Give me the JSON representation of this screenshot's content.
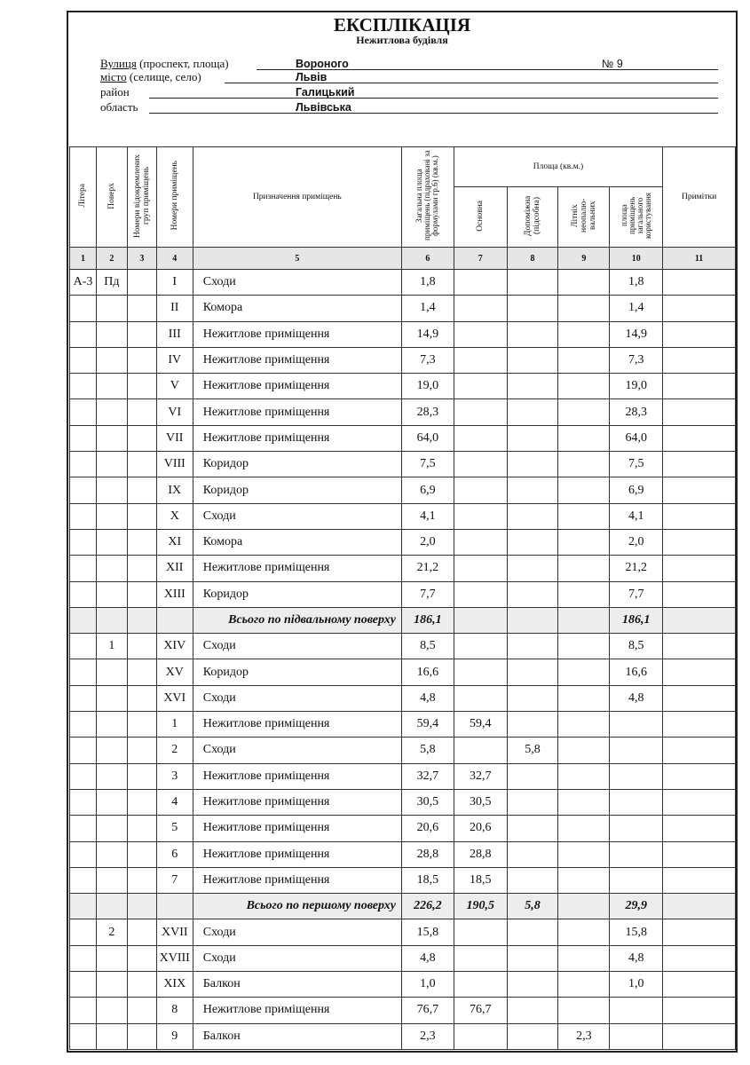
{
  "title": "ЕКСПЛІКАЦІЯ",
  "subtitle": "Нежитлова будівля",
  "address": {
    "street_label": "Вулиця",
    "street_label_rest": " (проспект, площа)",
    "street": "Вороного",
    "number": "№ 9",
    "city_label": "місто",
    "city_label_rest": " (селище, село)",
    "city": "Львів",
    "district_label": "район",
    "district": "Галицький",
    "region_label": "область",
    "region": "Львівська"
  },
  "headers": {
    "c1": "Літера",
    "c2": "Поверх",
    "c3": "Номери відокремлених груп приміщень",
    "c4": "Номери приміщень",
    "c5": "Призначення приміщень",
    "c6": "Загальна площа приміщень (підраховані за формулами гр.6) (кв.м.)",
    "area_group": "Площа (кв.м.)",
    "c7": "Основна",
    "c8": "Допоміжна (підсобна)",
    "c9": "Літніх неопалю- вальних",
    "c10": "площа приміщень загального користування",
    "c11": "Примітки"
  },
  "col_numbers": [
    "1",
    "2",
    "3",
    "4",
    "5",
    "6",
    "7",
    "8",
    "9",
    "10",
    "11"
  ],
  "rows": [
    [
      "А-3",
      "Пд",
      "",
      "I",
      "Сходи",
      "1,8",
      "",
      "",
      "",
      "1,8",
      ""
    ],
    [
      "",
      "",
      "",
      "II",
      "Комора",
      "1,4",
      "",
      "",
      "",
      "1,4",
      ""
    ],
    [
      "",
      "",
      "",
      "III",
      "Нежитлове приміщення",
      "14,9",
      "",
      "",
      "",
      "14,9",
      ""
    ],
    [
      "",
      "",
      "",
      "IV",
      "Нежитлове приміщення",
      "7,3",
      "",
      "",
      "",
      "7,3",
      ""
    ],
    [
      "",
      "",
      "",
      "V",
      "Нежитлове приміщення",
      "19,0",
      "",
      "",
      "",
      "19,0",
      ""
    ],
    [
      "",
      "",
      "",
      "VI",
      "Нежитлове приміщення",
      "28,3",
      "",
      "",
      "",
      "28,3",
      ""
    ],
    [
      "",
      "",
      "",
      "VII",
      "Нежитлове приміщення",
      "64,0",
      "",
      "",
      "",
      "64,0",
      ""
    ],
    [
      "",
      "",
      "",
      "VIII",
      "Коридор",
      "7,5",
      "",
      "",
      "",
      "7,5",
      ""
    ],
    [
      "",
      "",
      "",
      "IX",
      "Коридор",
      "6,9",
      "",
      "",
      "",
      "6,9",
      ""
    ],
    [
      "",
      "",
      "",
      "X",
      "Сходи",
      "4,1",
      "",
      "",
      "",
      "4,1",
      ""
    ],
    [
      "",
      "",
      "",
      "XI",
      "Комора",
      "2,0",
      "",
      "",
      "",
      "2,0",
      ""
    ],
    [
      "",
      "",
      "",
      "XII",
      "Нежитлове приміщення",
      "21,2",
      "",
      "",
      "",
      "21,2",
      ""
    ],
    [
      "",
      "",
      "",
      "XIII",
      "Коридор",
      "7,7",
      "",
      "",
      "",
      "7,7",
      ""
    ],
    [
      "",
      "",
      "",
      "",
      "Всього по підвальному поверху",
      "186,1",
      "",
      "",
      "",
      "186,1",
      ""
    ],
    [
      "",
      "1",
      "",
      "XIV",
      "Сходи",
      "8,5",
      "",
      "",
      "",
      "8,5",
      ""
    ],
    [
      "",
      "",
      "",
      "XV",
      "Коридор",
      "16,6",
      "",
      "",
      "",
      "16,6",
      ""
    ],
    [
      "",
      "",
      "",
      "XVI",
      "Сходи",
      "4,8",
      "",
      "",
      "",
      "4,8",
      ""
    ],
    [
      "",
      "",
      "",
      "1",
      "Нежитлове приміщення",
      "59,4",
      "59,4",
      "",
      "",
      "",
      ""
    ],
    [
      "",
      "",
      "",
      "2",
      "Сходи",
      "5,8",
      "",
      "5,8",
      "",
      "",
      ""
    ],
    [
      "",
      "",
      "",
      "3",
      "Нежитлове приміщення",
      "32,7",
      "32,7",
      "",
      "",
      "",
      ""
    ],
    [
      "",
      "",
      "",
      "4",
      "Нежитлове приміщення",
      "30,5",
      "30,5",
      "",
      "",
      "",
      ""
    ],
    [
      "",
      "",
      "",
      "5",
      "Нежитлове приміщення",
      "20,6",
      "20,6",
      "",
      "",
      "",
      ""
    ],
    [
      "",
      "",
      "",
      "6",
      "Нежитлове приміщення",
      "28,8",
      "28,8",
      "",
      "",
      "",
      ""
    ],
    [
      "",
      "",
      "",
      "7",
      "Нежитлове приміщення",
      "18,5",
      "18,5",
      "",
      "",
      "",
      ""
    ],
    [
      "",
      "",
      "",
      "",
      "Всього по першому поверху",
      "226,2",
      "190,5",
      "5,8",
      "",
      "29,9",
      ""
    ],
    [
      "",
      "2",
      "",
      "XVII",
      "Сходи",
      "15,8",
      "",
      "",
      "",
      "15,8",
      ""
    ],
    [
      "",
      "",
      "",
      "XVIII",
      "Сходи",
      "4,8",
      "",
      "",
      "",
      "4,8",
      ""
    ],
    [
      "",
      "",
      "",
      "XIX",
      "Балкон",
      "1,0",
      "",
      "",
      "",
      "1,0",
      ""
    ],
    [
      "",
      "",
      "",
      "8",
      "Нежитлове приміщення",
      "76,7",
      "76,7",
      "",
      "",
      "",
      ""
    ],
    [
      "",
      "",
      "",
      "9",
      "Балкон",
      "2,3",
      "",
      "",
      "2,3",
      "",
      ""
    ]
  ],
  "total_rows": [
    13,
    24
  ]
}
